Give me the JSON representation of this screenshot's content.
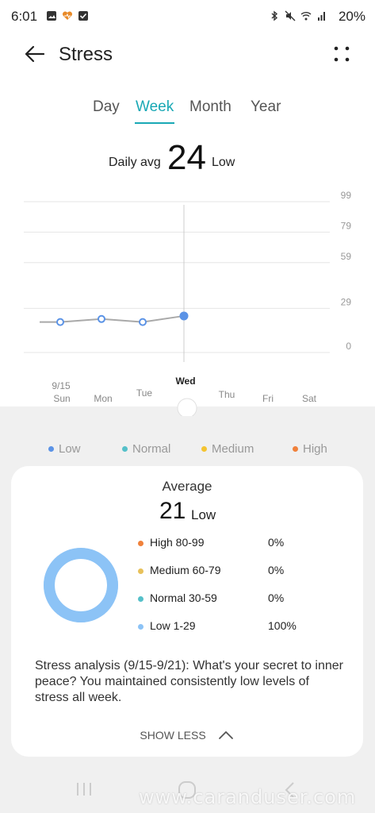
{
  "status_bar": {
    "time": "6:01",
    "battery": "20%",
    "left_icons": [
      "image-icon",
      "heart-icon",
      "check-square-icon"
    ],
    "right_icons": [
      "bluetooth-icon",
      "mute-icon",
      "wifi-icon",
      "signal-icon"
    ]
  },
  "header": {
    "title": "Stress",
    "back_icon": "arrow-left-icon",
    "more_icon": "more-icon"
  },
  "tabs": [
    {
      "label": "Day",
      "active": false
    },
    {
      "label": "Week",
      "active": true
    },
    {
      "label": "Month",
      "active": false
    },
    {
      "label": "Year",
      "active": false
    }
  ],
  "daily_avg": {
    "label": "Daily avg",
    "value": "24",
    "level": "Low"
  },
  "chart_data": {
    "type": "line",
    "y_ticks": [
      "99",
      "79",
      "59",
      "29",
      "0"
    ],
    "ylim": [
      0,
      99
    ],
    "days": [
      {
        "date": "9/15",
        "day": "Sun"
      },
      {
        "date": "",
        "day": "Mon"
      },
      {
        "date": "",
        "day": "Tue"
      },
      {
        "date": "",
        "day": "Wed"
      },
      {
        "date": "",
        "day": "Thu"
      },
      {
        "date": "",
        "day": "Fri"
      },
      {
        "date": "",
        "day": "Sat"
      }
    ],
    "selected_day": "Wed",
    "series": [
      {
        "values": [
          20,
          22,
          20,
          24,
          null,
          null,
          null
        ]
      }
    ],
    "colors": {
      "line": "#a9a9a9",
      "point": "#5b93e6",
      "selected": "#5b93e6"
    },
    "grid": true
  },
  "legend": [
    {
      "label": "Low",
      "color": "#5b93e6"
    },
    {
      "label": "Normal",
      "color": "#55c0c9"
    },
    {
      "label": "Medium",
      "color": "#f4c431"
    },
    {
      "label": "High",
      "color": "#f0813b"
    }
  ],
  "summary": {
    "title": "Average",
    "value": "21",
    "level": "Low",
    "donut": {
      "low_fraction": 1.0,
      "track_color": "#b7dcfb",
      "fill_color": "#8cc3f6"
    },
    "rows": [
      {
        "label": "High 80-99",
        "pct": "0%",
        "color": "#f0813b"
      },
      {
        "label": "Medium 60-79",
        "pct": "0%",
        "color": "#e8c15a"
      },
      {
        "label": "Normal 30-59",
        "pct": "0%",
        "color": "#55c0c9"
      },
      {
        "label": "Low 1-29",
        "pct": "100%",
        "color": "#8cc3f6"
      }
    ],
    "analysis": "Stress analysis (9/15-9/21): What's your secret to inner peace? You maintained consistently low levels of stress all week.",
    "show_less": "SHOW LESS"
  },
  "watermark": "www.caranduser.com"
}
